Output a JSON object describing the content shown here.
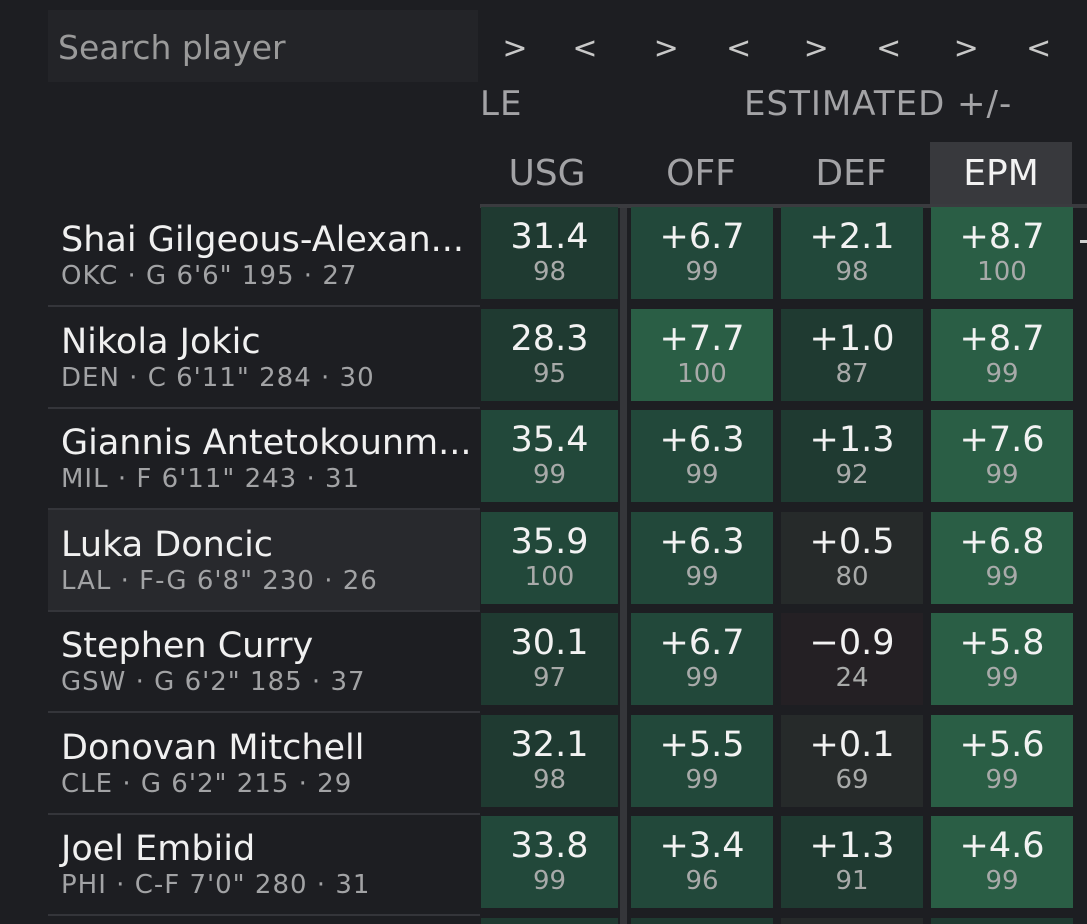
{
  "search": {
    "placeholder": "Search player"
  },
  "sort_controls": [
    ">",
    "<",
    ">",
    "<",
    ">",
    "<",
    ">",
    "<"
  ],
  "group_headers": {
    "left": "LE",
    "estimated": "ESTIMATED +/-"
  },
  "columns": [
    {
      "label": "USG",
      "active": false
    },
    {
      "label": "OFF",
      "active": false
    },
    {
      "label": "DEF",
      "active": false
    },
    {
      "label": "EPM",
      "active": true
    }
  ],
  "rows": [
    {
      "name": "Shai Gilgeous-Alexan...",
      "meta": "OKC · G 6'6\" 195 · 27",
      "highlight": false,
      "cells": [
        {
          "value": "31.4",
          "pct": "98"
        },
        {
          "value": "+6.7",
          "pct": "99"
        },
        {
          "value": "+2.1",
          "pct": "98"
        },
        {
          "value": "+8.7",
          "pct": "100"
        }
      ]
    },
    {
      "name": "Nikola Jokic",
      "meta": "DEN · C 6'11\" 284 · 30",
      "highlight": false,
      "cells": [
        {
          "value": "28.3",
          "pct": "95"
        },
        {
          "value": "+7.7",
          "pct": "100"
        },
        {
          "value": "+1.0",
          "pct": "87"
        },
        {
          "value": "+8.7",
          "pct": "99"
        }
      ]
    },
    {
      "name": "Giannis Antetokounm...",
      "meta": "MIL · F 6'11\" 243 · 31",
      "highlight": false,
      "cells": [
        {
          "value": "35.4",
          "pct": "99"
        },
        {
          "value": "+6.3",
          "pct": "99"
        },
        {
          "value": "+1.3",
          "pct": "92"
        },
        {
          "value": "+7.6",
          "pct": "99"
        }
      ]
    },
    {
      "name": "Luka Doncic",
      "meta": "LAL · F-G 6'8\" 230 · 26",
      "highlight": true,
      "cells": [
        {
          "value": "35.9",
          "pct": "100"
        },
        {
          "value": "+6.3",
          "pct": "99"
        },
        {
          "value": "+0.5",
          "pct": "80"
        },
        {
          "value": "+6.8",
          "pct": "99"
        }
      ]
    },
    {
      "name": "Stephen Curry",
      "meta": "GSW · G 6'2\" 185 · 37",
      "highlight": false,
      "cells": [
        {
          "value": "30.1",
          "pct": "97"
        },
        {
          "value": "+6.7",
          "pct": "99"
        },
        {
          "value": "−0.9",
          "pct": "24"
        },
        {
          "value": "+5.8",
          "pct": "99"
        }
      ]
    },
    {
      "name": "Donovan Mitchell",
      "meta": "CLE · G 6'2\" 215 · 29",
      "highlight": false,
      "cells": [
        {
          "value": "32.1",
          "pct": "98"
        },
        {
          "value": "+5.5",
          "pct": "99"
        },
        {
          "value": "+0.1",
          "pct": "69"
        },
        {
          "value": "+5.6",
          "pct": "99"
        }
      ]
    },
    {
      "name": "Joel Embiid",
      "meta": "PHI · C-F 7'0\" 280 · 31",
      "highlight": false,
      "cells": [
        {
          "value": "33.8",
          "pct": "99"
        },
        {
          "value": "+3.4",
          "pct": "96"
        },
        {
          "value": "+1.3",
          "pct": "91"
        },
        {
          "value": "+4.6",
          "pct": "99"
        }
      ]
    }
  ],
  "colors": {
    "background": "#1d1e22",
    "cell_high": "#2a5e45",
    "cell_mid": "#22483a",
    "cell_low": "#1f3a31",
    "cell_neutral": "#262a2a",
    "cell_below": "#242024"
  }
}
